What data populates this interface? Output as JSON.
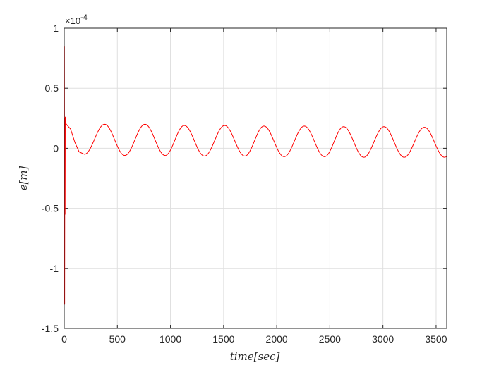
{
  "chart_data": {
    "type": "line",
    "title": "",
    "xlabel": "time[sec]",
    "ylabel": "e[m]",
    "exponent_label": "×10",
    "exponent_power": "-4",
    "xlim": [
      0,
      3600
    ],
    "ylim": [
      -1.5,
      1
    ],
    "xticks": [
      0,
      500,
      1000,
      1500,
      2000,
      2500,
      3000,
      3500
    ],
    "xtick_labels": [
      "0",
      "500",
      "1000",
      "1500",
      "2000",
      "2500",
      "3000",
      "3500"
    ],
    "yticks": [
      -1.5,
      -1,
      -0.5,
      0,
      0.5,
      1
    ],
    "ytick_labels": [
      "-1.5",
      "-1",
      "-0.5",
      "0",
      "0.5",
      "1"
    ],
    "grid": true,
    "series_color": "#ff0000",
    "series": [
      {
        "name": "",
        "color": "#ff0000",
        "x": [
          0,
          2,
          4,
          6,
          8,
          10,
          14,
          20,
          30,
          60,
          100,
          140,
          190,
          380,
          570,
          760,
          950,
          1130,
          1320,
          1510,
          1700,
          1880,
          2070,
          2260,
          2450,
          2630,
          2820,
          3010,
          3200,
          3390,
          3580,
          3600
        ],
        "y": [
          0,
          0.85,
          -1.3,
          0.25,
          -0.55,
          0.26,
          0.21,
          0.2,
          0.19,
          0.16,
          0.05,
          -0.03,
          -0.05,
          0.2,
          -0.06,
          0.2,
          -0.06,
          0.19,
          -0.065,
          0.19,
          -0.065,
          0.185,
          -0.07,
          0.185,
          -0.07,
          0.18,
          -0.075,
          0.18,
          -0.075,
          0.175,
          -0.075,
          -0.07
        ]
      }
    ]
  }
}
